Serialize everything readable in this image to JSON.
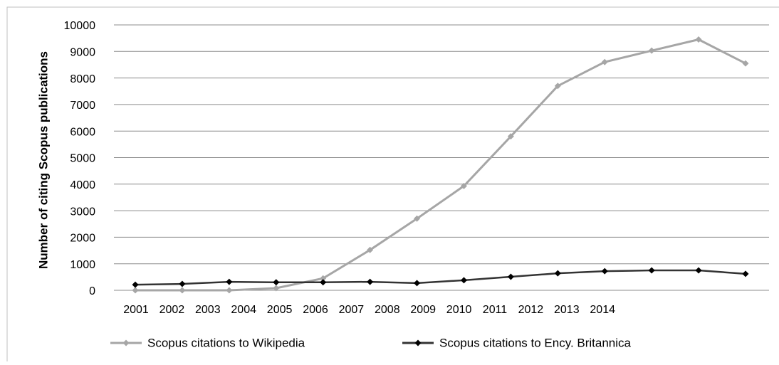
{
  "chart_data": {
    "type": "line",
    "ylabel": "Number of citing Scopus publications",
    "categories": [
      "2001",
      "2002",
      "2003",
      "2004",
      "2005",
      "2006",
      "2007",
      "2008",
      "2009",
      "2010",
      "2011",
      "2012",
      "2013",
      "2014"
    ],
    "series": [
      {
        "name": "Scopus citations to Wikipedia",
        "color": "#a6a6a6",
        "values": [
          0,
          0,
          0,
          80,
          450,
          1520,
          2700,
          3930,
          5800,
          7700,
          8600,
          9030,
          9450,
          8550
        ]
      },
      {
        "name": "Scopus citations to Ency. Britannica",
        "color": "#333333",
        "values": [
          210,
          240,
          320,
          300,
          300,
          320,
          270,
          380,
          510,
          640,
          720,
          750,
          750,
          620
        ]
      }
    ],
    "ylim": [
      0,
      10000
    ],
    "yticks": [
      0,
      1000,
      2000,
      3000,
      4000,
      5000,
      6000,
      7000,
      8000,
      9000,
      10000
    ],
    "grid": true
  }
}
